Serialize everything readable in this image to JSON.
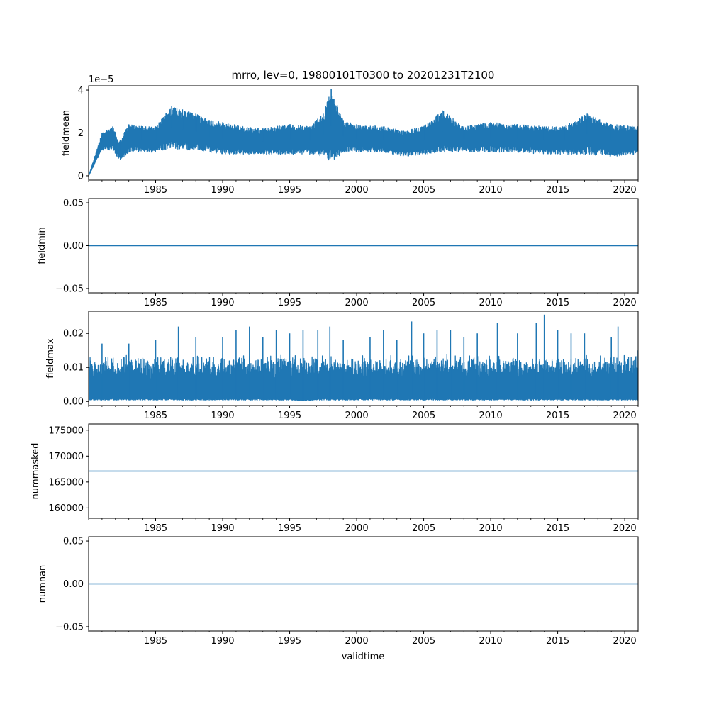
{
  "figure": {
    "title": "mrro, lev=0, 19800101T0300 to 20201231T2100",
    "xlabel": "validtime"
  },
  "colors": {
    "series": "#1f77b4",
    "axis": "#000000",
    "background": "#ffffff"
  },
  "chart_data": [
    {
      "type": "line",
      "ylabel": "fieldmean",
      "offset_label": "1e−5",
      "xlim": [
        1980.0,
        2021.0
      ],
      "ylim": [
        -0.2,
        4.2
      ],
      "yticks": [
        0,
        2,
        4
      ],
      "ytick_labels": [
        "0",
        "2",
        "4"
      ],
      "xticks": [
        1985,
        1990,
        1995,
        2000,
        2005,
        2010,
        2015,
        2020
      ],
      "xtick_labels": [
        "1985",
        "1990",
        "1995",
        "2000",
        "2005",
        "2010",
        "2015",
        "2020"
      ],
      "series": [
        {
          "name": "fieldmean",
          "kind": "dense",
          "x": [
            1980.0,
            1981.0,
            1981.8,
            1982.3,
            1983.0,
            1984.0,
            1985.0,
            1986.2,
            1987.0,
            1988.0,
            1989.0,
            1990.0,
            1991.5,
            1993.0,
            1995.0,
            1996.5,
            1997.5,
            1998.1,
            1999.0,
            2000.0,
            2002.0,
            2003.5,
            2005.0,
            2006.4,
            2008.0,
            2010.0,
            2012.0,
            2014.0,
            2015.5,
            2017.2,
            2019.0,
            2021.0
          ],
          "upper": [
            0.0,
            2.0,
            2.3,
            1.6,
            2.4,
            2.3,
            2.3,
            3.25,
            3.1,
            2.9,
            2.6,
            2.5,
            2.3,
            2.2,
            2.4,
            2.3,
            2.9,
            4.05,
            2.6,
            2.4,
            2.3,
            2.1,
            2.3,
            3.05,
            2.3,
            2.5,
            2.4,
            2.3,
            2.3,
            2.9,
            2.4,
            2.3
          ],
          "lower": [
            0.0,
            1.2,
            1.2,
            0.7,
            1.1,
            1.1,
            1.1,
            1.3,
            1.2,
            1.2,
            1.1,
            1.0,
            1.0,
            1.0,
            1.0,
            1.0,
            0.9,
            0.6,
            1.1,
            1.1,
            1.1,
            0.9,
            1.0,
            1.1,
            1.1,
            1.1,
            1.1,
            1.0,
            1.0,
            1.0,
            0.9,
            1.0
          ]
        }
      ]
    },
    {
      "type": "line",
      "ylabel": "fieldmin",
      "offset_label": "",
      "xlim": [
        1980.0,
        2021.0
      ],
      "ylim": [
        -0.055,
        0.055
      ],
      "yticks": [
        -0.05,
        0.0,
        0.05
      ],
      "ytick_labels": [
        "−0.05",
        "0.00",
        "0.05"
      ],
      "xticks": [
        1985,
        1990,
        1995,
        2000,
        2005,
        2010,
        2015,
        2020
      ],
      "xtick_labels": [
        "1985",
        "1990",
        "1995",
        "2000",
        "2005",
        "2010",
        "2015",
        "2020"
      ],
      "series": [
        {
          "name": "fieldmin",
          "kind": "constant",
          "value": 0.0
        }
      ]
    },
    {
      "type": "line",
      "ylabel": "fieldmax",
      "offset_label": "",
      "xlim": [
        1980.0,
        2021.0
      ],
      "ylim": [
        -0.0012,
        0.0265
      ],
      "yticks": [
        0.0,
        0.01,
        0.02
      ],
      "ytick_labels": [
        "0.00",
        "0.01",
        "0.02"
      ],
      "xticks": [
        1985,
        1990,
        1995,
        2000,
        2005,
        2010,
        2015,
        2020
      ],
      "xtick_labels": [
        "1985",
        "1990",
        "1995",
        "2000",
        "2005",
        "2010",
        "2015",
        "2020"
      ],
      "series": [
        {
          "name": "fieldmax",
          "kind": "dense",
          "x": [
            1980.0,
            1981.0,
            1983.0,
            1985.0,
            1986.7,
            1988.0,
            1990.0,
            1991.0,
            1992.0,
            1993.0,
            1994.0,
            1995.0,
            1996.0,
            1997.1,
            1998.0,
            1999.0,
            2001.0,
            2002.0,
            2003.0,
            2004.1,
            2005.0,
            2006.0,
            2007.0,
            2008.0,
            2009.0,
            2010.5,
            2012.0,
            2013.4,
            2014.0,
            2015.0,
            2016.0,
            2017.0,
            2019.0,
            2019.5,
            2021.0
          ],
          "upper": [
            0.016,
            0.017,
            0.017,
            0.018,
            0.022,
            0.019,
            0.019,
            0.021,
            0.022,
            0.019,
            0.021,
            0.02,
            0.021,
            0.021,
            0.022,
            0.018,
            0.019,
            0.021,
            0.018,
            0.0235,
            0.02,
            0.021,
            0.021,
            0.019,
            0.02,
            0.023,
            0.02,
            0.023,
            0.0255,
            0.021,
            0.02,
            0.02,
            0.019,
            0.022,
            0.015
          ],
          "lower": [
            0.0008,
            0.0008,
            0.0008,
            0.0008,
            0.0008,
            0.0008,
            0.0008,
            0.0008,
            0.0008,
            0.0008,
            0.0008,
            0.0008,
            0.0005,
            0.0008,
            0.0008,
            0.0008,
            0.0008,
            0.0008,
            0.0008,
            0.0008,
            0.0008,
            0.0008,
            0.0008,
            0.0008,
            0.0008,
            0.0008,
            0.0008,
            0.0008,
            0.0008,
            0.0008,
            0.0008,
            0.0008,
            0.0008,
            0.0008,
            0.0008
          ],
          "body_max": 0.014
        }
      ]
    },
    {
      "type": "line",
      "ylabel": "nummasked",
      "offset_label": "",
      "xlim": [
        1980.0,
        2021.0
      ],
      "ylim": [
        158000,
        176200
      ],
      "yticks": [
        160000,
        165000,
        170000,
        175000
      ],
      "ytick_labels": [
        "160000",
        "165000",
        "170000",
        "175000"
      ],
      "xticks": [
        1985,
        1990,
        1995,
        2000,
        2005,
        2010,
        2015,
        2020
      ],
      "xtick_labels": [
        "1985",
        "1990",
        "1995",
        "2000",
        "2005",
        "2010",
        "2015",
        "2020"
      ],
      "series": [
        {
          "name": "nummasked",
          "kind": "constant",
          "value": 167100
        }
      ]
    },
    {
      "type": "line",
      "ylabel": "numnan",
      "offset_label": "",
      "xlim": [
        1980.0,
        2021.0
      ],
      "ylim": [
        -0.055,
        0.055
      ],
      "yticks": [
        -0.05,
        0.0,
        0.05
      ],
      "ytick_labels": [
        "−0.05",
        "0.00",
        "0.05"
      ],
      "xticks": [
        1985,
        1990,
        1995,
        2000,
        2005,
        2010,
        2015,
        2020
      ],
      "xtick_labels": [
        "1985",
        "1990",
        "1995",
        "2000",
        "2005",
        "2010",
        "2015",
        "2020"
      ],
      "series": [
        {
          "name": "numnan",
          "kind": "constant",
          "value": 0.0
        }
      ]
    }
  ]
}
